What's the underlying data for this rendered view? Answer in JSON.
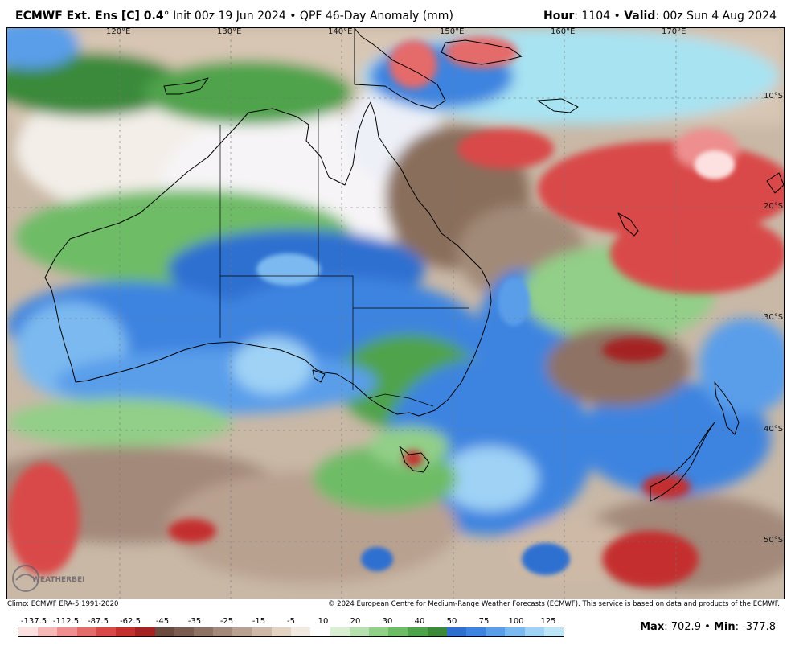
{
  "header": {
    "model": "ECMWF Ext. Ens [C] 0.4",
    "degree_sign": "°",
    "init": "Init 00z 19 Jun 2024",
    "bullet": "•",
    "product": "QPF 46-Day Anomaly (mm)",
    "hour_label": "Hour",
    "hour_value": ": 1104",
    "valid_label": "Valid",
    "valid_value": ": 00z Sun 4 Aug 2024"
  },
  "map": {
    "lon_labels": [
      "120°E",
      "130°E",
      "140°E",
      "150°E",
      "160°E",
      "170°E"
    ],
    "lat_labels": [
      "10°S",
      "20°S",
      "30°S",
      "40°S",
      "50°S"
    ]
  },
  "footer": {
    "climo": "Climo: ECMWF ERA-5 1991-2020",
    "copyright": "© 2024 European Centre for Medium-Range Weather Forecasts (ECMWF). This service is based on data and products of the ECMWF."
  },
  "colorbar": {
    "labels": [
      "-137.5",
      "-112.5",
      "-87.5",
      "-62.5",
      "-45",
      "-35",
      "-25",
      "-15",
      "-5",
      "10",
      "20",
      "30",
      "40",
      "50",
      "75",
      "100",
      "125"
    ],
    "colors": [
      "#fde0e0",
      "#f6b7b7",
      "#ee8e8e",
      "#e56a6a",
      "#d94848",
      "#c42f2f",
      "#a52222",
      "#6b4a40",
      "#7b5c50",
      "#8e7264",
      "#a3897a",
      "#b9a190",
      "#cdb9a6",
      "#e2d3c2",
      "#f2eae0",
      "#ffffff",
      "#d8efd2",
      "#b6e0ad",
      "#92cf88",
      "#6ebc66",
      "#4fa34b",
      "#3a8a3a",
      "#2f6fd0",
      "#3d84e0",
      "#5a9eea",
      "#7bb9f0",
      "#9fd2f5",
      "#bde6f8"
    ]
  },
  "stats": {
    "max_label": "Max",
    "max_value": ": 702.9",
    "sep": "•",
    "min_label": "Min",
    "min_value": ": -377.8"
  },
  "logo": {
    "text": "WEATHERBELL"
  }
}
